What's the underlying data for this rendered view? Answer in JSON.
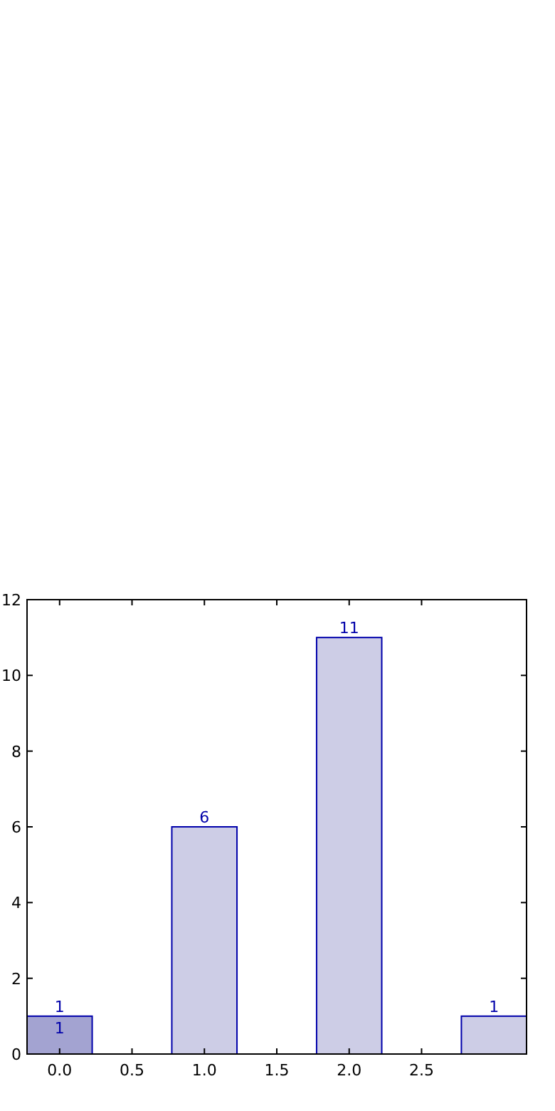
{
  "chart_data": {
    "type": "bar",
    "x": [
      0,
      1,
      2,
      3
    ],
    "values": [
      1,
      6,
      11,
      1
    ],
    "colors": [
      "#a3a3d1",
      "#cdcde6",
      "#cdcde6",
      "#cdcde6"
    ],
    "data_labels": true,
    "annotations": [
      {
        "text": "1",
        "x": 0,
        "y": 1
      }
    ],
    "xlim": [
      -0.225,
      3.225
    ],
    "xticks": [
      {
        "value": 0,
        "label": "0.0"
      },
      {
        "value": 0.5,
        "label": "0.5"
      },
      {
        "value": 1,
        "label": "1.0"
      },
      {
        "value": 1.5,
        "label": "1.5"
      },
      {
        "value": 2,
        "label": "2.0"
      },
      {
        "value": 2.5,
        "label": "2.5"
      }
    ],
    "ylim": [
      0,
      12
    ],
    "yticks": [
      0,
      2,
      4,
      6,
      8,
      10,
      12
    ],
    "grid": false
  }
}
